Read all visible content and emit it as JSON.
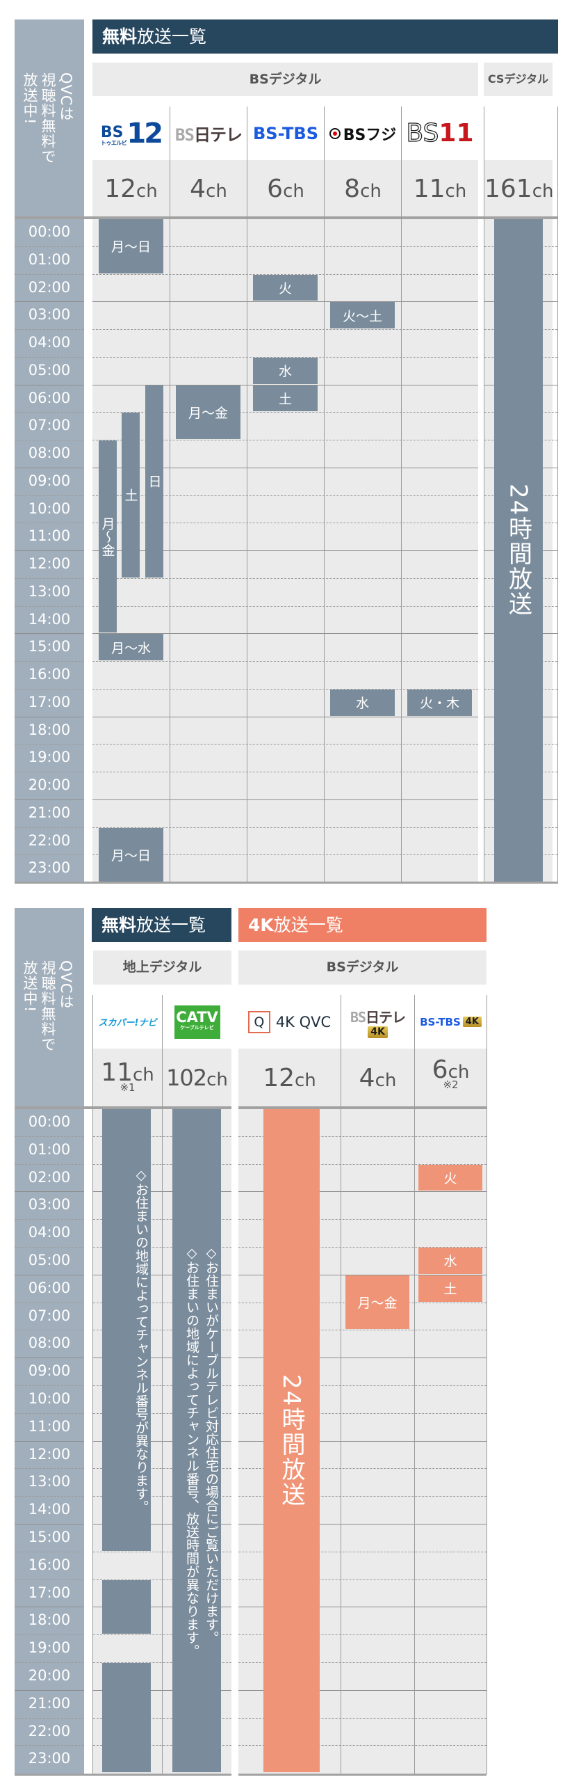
{
  "side_label": {
    "lines": [
      "QVCは",
      "視聴料無料で",
      "放送中!"
    ]
  },
  "times": [
    "00:00",
    "01:00",
    "02:00",
    "03:00",
    "04:00",
    "05:00",
    "06:00",
    "07:00",
    "08:00",
    "09:00",
    "10:00",
    "11:00",
    "12:00",
    "13:00",
    "14:00",
    "15:00",
    "16:00",
    "17:00",
    "18:00",
    "19:00",
    "20:00",
    "21:00",
    "22:00",
    "23:00"
  ],
  "section1": {
    "title": {
      "bold": "無料",
      "rest": "放送一覧"
    },
    "bands": {
      "bs": "BSデジタル",
      "cs": "CSデジタル"
    },
    "channels": [
      {
        "id": "bs12",
        "logo_main": "BS",
        "logo_num": "12",
        "logo_sub": "トゥエルビ",
        "num": "12",
        "unit": "ch"
      },
      {
        "id": "bsntv",
        "logo_a": "BS",
        "logo_b": "日テレ",
        "num": "4",
        "unit": "ch"
      },
      {
        "id": "bstbs",
        "logo": "BS-TBS",
        "num": "6",
        "unit": "ch"
      },
      {
        "id": "bsfuji",
        "logo": "BSフジ",
        "num": "8",
        "unit": "ch"
      },
      {
        "id": "bs11",
        "logo_a": "BS",
        "logo_b": "11",
        "num": "11",
        "unit": "ch"
      },
      {
        "id": "qvc-cs",
        "logo": "",
        "num": "161",
        "unit": "ch"
      }
    ],
    "blocks": [
      {
        "col": 0,
        "start": 0,
        "end": 2,
        "label": "月〜日",
        "sub": "full"
      },
      {
        "col": 0,
        "start": 8,
        "end": 15,
        "label": "月〜金",
        "sub": "a",
        "vertical": true
      },
      {
        "col": 0,
        "start": 7,
        "end": 13,
        "label": "土",
        "sub": "b"
      },
      {
        "col": 0,
        "start": 6,
        "end": 13,
        "label": "日",
        "sub": "c"
      },
      {
        "col": 0,
        "start": 15,
        "end": 16,
        "label": "月〜水",
        "sub": "full"
      },
      {
        "col": 0,
        "start": 22,
        "end": 24,
        "label": "月〜日",
        "sub": "full"
      },
      {
        "col": 1,
        "start": 6,
        "end": 8,
        "label": "月〜金",
        "sub": "full"
      },
      {
        "col": 2,
        "start": 2,
        "end": 3,
        "label": "火",
        "sub": "full"
      },
      {
        "col": 2,
        "start": 5,
        "end": 6,
        "label": "水",
        "sub": "full"
      },
      {
        "col": 2,
        "start": 6,
        "end": 7,
        "label": "土",
        "sub": "full"
      },
      {
        "col": 3,
        "start": 3,
        "end": 4,
        "label": "火〜土",
        "sub": "full"
      },
      {
        "col": 3,
        "start": 17,
        "end": 18,
        "label": "水",
        "sub": "full"
      },
      {
        "col": 4,
        "start": 17,
        "end": 18,
        "label": "火・木",
        "sub": "full"
      },
      {
        "col": 5,
        "start": 0,
        "end": 24,
        "label": "24時間放送",
        "sub": "full",
        "big": true
      }
    ]
  },
  "section2": {
    "title_free": {
      "bold": "無料",
      "rest": "放送一覧"
    },
    "title_4k": {
      "bold": "4K",
      "rest": "放送一覧"
    },
    "bands": {
      "terrestrial": "地上デジタル",
      "bs": "BSデジタル"
    },
    "channels": [
      {
        "id": "skyperfec-navi",
        "logo": "スカパー!ナビ",
        "num": "11",
        "unit": "ch",
        "note": "※1"
      },
      {
        "id": "catv",
        "logo": "CATV",
        "logo_sub": "ケーブルテレビ",
        "num": "102",
        "unit": "ch"
      },
      {
        "id": "4kqvc",
        "logo_q": "Q",
        "logo": "4K QVC",
        "num": "12",
        "unit": "ch"
      },
      {
        "id": "bsntv4k",
        "logo_a": "BS",
        "logo_b": "日テレ",
        "badge": "4K",
        "num": "4",
        "unit": "ch"
      },
      {
        "id": "bstbs4k",
        "logo": "BS-TBS",
        "badge": "4K",
        "num": "6",
        "unit": "ch",
        "note": "※2"
      }
    ],
    "blocks": [
      {
        "col": 0,
        "start": 0,
        "end": 16,
        "label": "◇お住まいの地域によってチャンネル番号が異なります。",
        "note": true
      },
      {
        "col": 0,
        "start": 17,
        "end": 19,
        "label": ""
      },
      {
        "col": 0,
        "start": 20,
        "end": 24,
        "label": ""
      },
      {
        "col": 1,
        "start": 0,
        "end": 24,
        "label": "◇お住まいがケーブルテレビ対応住宅の場合にご覧いただけます。\n◇お住まいの地域によってチャンネル番号、放送時間が異なります。",
        "note": true
      },
      {
        "col": 2,
        "start": 0,
        "end": 24,
        "label": "24時間放送",
        "big": true,
        "color": "salmon"
      },
      {
        "col": 3,
        "start": 6,
        "end": 8,
        "label": "月〜金",
        "color": "salmon"
      },
      {
        "col": 4,
        "start": 2,
        "end": 3,
        "label": "火",
        "color": "salmon"
      },
      {
        "col": 4,
        "start": 5,
        "end": 6,
        "label": "水",
        "color": "salmon"
      },
      {
        "col": 4,
        "start": 6,
        "end": 7,
        "label": "土",
        "color": "salmon"
      }
    ]
  },
  "colors": {
    "navy_title": "#27475f",
    "orange_title": "#ef8065",
    "block_navy": "#7a8c9c",
    "block_salmon": "#f09478",
    "side": "#a1afbc",
    "grid": "#eaebea"
  }
}
